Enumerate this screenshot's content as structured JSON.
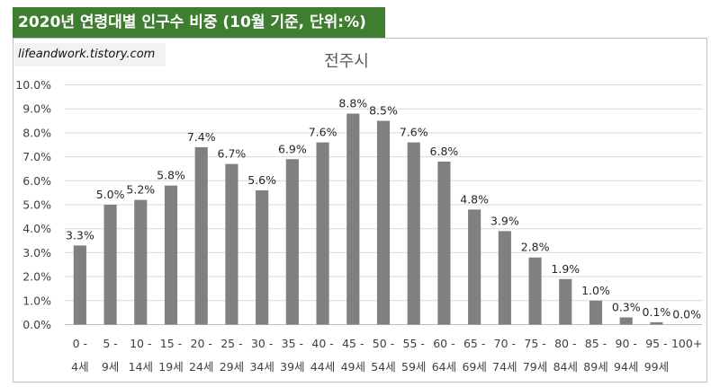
{
  "header": {
    "title": "2020년 연령대별 인구수 비중 (10월 기준, 단위:%)"
  },
  "watermark": "lifeandwork.tistory.com",
  "colors": {
    "header_bg": "#3f7d31",
    "bar": "#808080",
    "grid": "#d9d9d9",
    "text": "#404040"
  },
  "chart_data": {
    "type": "bar",
    "title": "전주시",
    "categories": [
      "0 - 4세",
      "5 - 9세",
      "10 - 14세",
      "15 - 19세",
      "20 - 24세",
      "25 - 29세",
      "30 - 34세",
      "35 - 39세",
      "40 - 44세",
      "45 - 49세",
      "50 - 54세",
      "55 - 59세",
      "60 - 64세",
      "65 - 69세",
      "70 - 74세",
      "75 - 79세",
      "80 - 84세",
      "85 - 89세",
      "90 - 94세",
      "95 - 99세",
      "100+"
    ],
    "category_lines": [
      [
        "0 -",
        "4세"
      ],
      [
        "5 -",
        "9세"
      ],
      [
        "10 -",
        "14세"
      ],
      [
        "15 -",
        "19세"
      ],
      [
        "20 -",
        "24세"
      ],
      [
        "25 -",
        "29세"
      ],
      [
        "30 -",
        "34세"
      ],
      [
        "35 -",
        "39세"
      ],
      [
        "40 -",
        "44세"
      ],
      [
        "45 -",
        "49세"
      ],
      [
        "50 -",
        "54세"
      ],
      [
        "55 -",
        "59세"
      ],
      [
        "60 -",
        "64세"
      ],
      [
        "65 -",
        "69세"
      ],
      [
        "70 -",
        "74세"
      ],
      [
        "75 -",
        "79세"
      ],
      [
        "80 -",
        "84세"
      ],
      [
        "85 -",
        "89세"
      ],
      [
        "90 -",
        "94세"
      ],
      [
        "95 -",
        "99세"
      ],
      [
        "100+",
        ""
      ]
    ],
    "values": [
      3.3,
      5.0,
      5.2,
      5.8,
      7.4,
      6.7,
      5.6,
      6.9,
      7.6,
      8.8,
      8.5,
      7.6,
      6.8,
      4.8,
      3.9,
      2.8,
      1.9,
      1.0,
      0.3,
      0.1,
      0.0
    ],
    "data_labels": [
      "3.3%",
      "5.0%",
      "5.2%",
      "5.8%",
      "7.4%",
      "6.7%",
      "5.6%",
      "6.9%",
      "7.6%",
      "8.8%",
      "8.5%",
      "7.6%",
      "6.8%",
      "4.8%",
      "3.9%",
      "2.8%",
      "1.9%",
      "1.0%",
      "0.3%",
      "0.1%",
      "0.0%"
    ],
    "ylim": [
      0,
      10
    ],
    "yticks": [
      0,
      1,
      2,
      3,
      4,
      5,
      6,
      7,
      8,
      9,
      10
    ],
    "ytick_labels": [
      "0.0%",
      "1.0%",
      "2.0%",
      "3.0%",
      "4.0%",
      "5.0%",
      "6.0%",
      "7.0%",
      "8.0%",
      "9.0%",
      "10.0%"
    ],
    "grid": true,
    "legend": "none"
  }
}
